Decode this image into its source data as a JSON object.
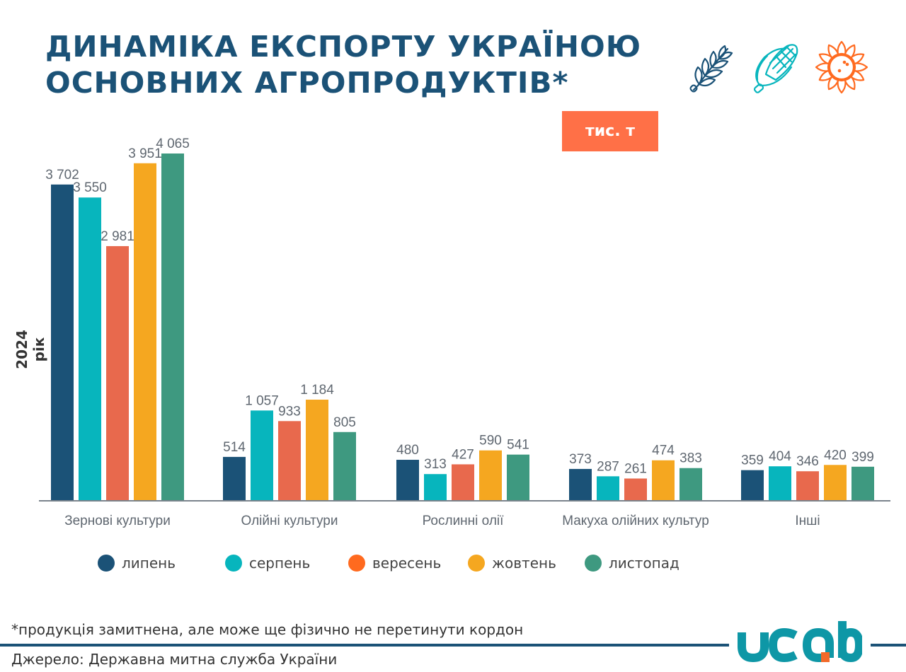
{
  "title": {
    "line1": "ДИНАМІКА ЕКСПОРТУ УКРАЇНОЮ",
    "line2": "ОСНОВНИХ АГРОПРОДУКТІВ*"
  },
  "icons": [
    "wheat-icon",
    "corn-icon",
    "sunflower-icon"
  ],
  "unit_badge": "тис. т",
  "colors": {
    "title": "#1b5277",
    "badge": "#ff7047",
    "axis": "#7a838c",
    "label": "#5f6770"
  },
  "chart_data": {
    "type": "bar",
    "title": "ДИНАМІКА ЕКСПОРТУ УКРАЇНОЮ ОСНОВНИХ АГРОПРОДУКТІВ*",
    "xlabel": "",
    "ylabel": "2024 рік",
    "unit": "тис. т",
    "ylim": [
      0,
      4200
    ],
    "grid": false,
    "legend_position": "bottom",
    "categories": [
      "Зернові культури",
      "Олійні культури",
      "Рослинні олії",
      "Макуха олійних культур",
      "Інші"
    ],
    "series": [
      {
        "name": "липень",
        "color": "#1b5277",
        "values": [
          3702,
          514,
          480,
          373,
          359
        ],
        "labels": [
          "3 702",
          "514",
          "480",
          "373",
          "359"
        ]
      },
      {
        "name": "серпень",
        "color": "#07b5bd",
        "values": [
          3550,
          1057,
          313,
          287,
          404
        ],
        "labels": [
          "3 550",
          "1 057",
          "313",
          "287",
          "404"
        ]
      },
      {
        "name": "вересень",
        "color": "#e8694d",
        "legend_color": "#ff6a1f",
        "values": [
          2981,
          933,
          427,
          261,
          346
        ],
        "labels": [
          "2 981",
          "933",
          "427",
          "261",
          "346"
        ]
      },
      {
        "name": "жовтень",
        "color": "#f5a720",
        "values": [
          3951,
          1184,
          590,
          474,
          420
        ],
        "labels": [
          "3 951",
          "1 184",
          "590",
          "474",
          "420"
        ]
      },
      {
        "name": "листопад",
        "color": "#3e9980",
        "values": [
          4065,
          805,
          541,
          383,
          399
        ],
        "labels": [
          "4 065",
          "805",
          "541",
          "383",
          "399"
        ]
      }
    ]
  },
  "footnote": "*продукція замитнена, але може ще фізично не перетинути кордон",
  "source": "Джерело: Державна митна служба України",
  "logo": {
    "text": "ucab",
    "color": "#0e97a6",
    "accent": "#f26a2a"
  }
}
